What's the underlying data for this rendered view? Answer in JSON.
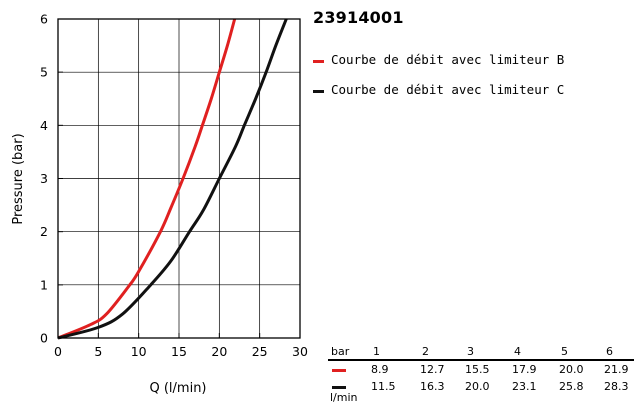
{
  "title": "23914001",
  "chart_data": {
    "type": "line",
    "xlabel": "Q (l/min)",
    "ylabel": "Pressure (bar)",
    "xlim": [
      0,
      30
    ],
    "ylim": [
      0,
      6
    ],
    "xticks": [
      "0",
      "5",
      "10",
      "15",
      "20",
      "25",
      "30"
    ],
    "yticks": [
      "0",
      "1",
      "2",
      "3",
      "4",
      "5",
      "6"
    ],
    "grid": true,
    "legend_position": "right",
    "series": [
      {
        "name": "Courbe de débit avec limiteur B",
        "color": "#e02020",
        "x": [
          0,
          4,
          6,
          8.9,
          10,
          12.7,
          14,
          15.5,
          17,
          17.9,
          19,
          20.0,
          21,
          21.9
        ],
        "y": [
          0,
          0.25,
          0.45,
          1,
          1.25,
          2,
          2.45,
          3,
          3.6,
          4,
          4.5,
          5,
          5.5,
          6
        ]
      },
      {
        "name": "Courbe de débit avec limiteur C",
        "color": "#111111",
        "x": [
          0,
          5,
          8,
          11.5,
          14,
          16.3,
          18,
          20.0,
          22,
          23.1,
          24.5,
          25.8,
          27,
          28.3
        ],
        "y": [
          0,
          0.2,
          0.45,
          1,
          1.45,
          2,
          2.4,
          3,
          3.6,
          4,
          4.5,
          5,
          5.5,
          6
        ]
      }
    ]
  },
  "table": {
    "header_label": "bar",
    "unit_label": "l/min",
    "columns": [
      "1",
      "2",
      "3",
      "4",
      "5",
      "6"
    ],
    "rows": [
      {
        "color": "#e02020",
        "values": [
          "8.9",
          "12.7",
          "15.5",
          "17.9",
          "20.0",
          "21.9"
        ]
      },
      {
        "color": "#111111",
        "values": [
          "11.5",
          "16.3",
          "20.0",
          "23.1",
          "25.8",
          "28.3"
        ]
      }
    ]
  }
}
